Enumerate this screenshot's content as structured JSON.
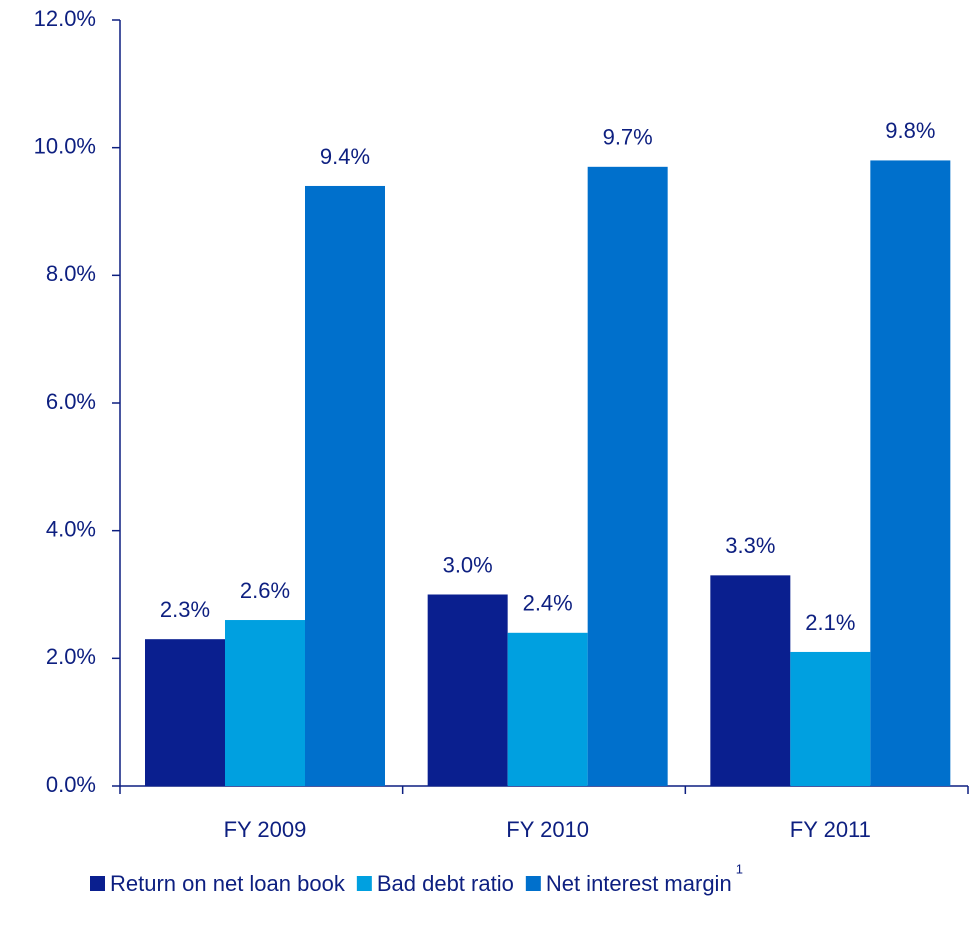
{
  "chart_data": {
    "type": "bar",
    "categories": [
      "FY 2009",
      "FY 2010",
      "FY 2011"
    ],
    "series": [
      {
        "name": "Return on net loan book",
        "color": "#0a1f8f",
        "values": [
          2.3,
          3.0,
          3.3
        ],
        "value_labels": [
          "2.3%",
          "3.0%",
          "3.3%"
        ]
      },
      {
        "name": "Bad debt ratio",
        "color": "#00a0e0",
        "values": [
          2.6,
          2.4,
          2.1
        ],
        "value_labels": [
          "2.6%",
          "2.4%",
          "2.1%"
        ]
      },
      {
        "name": "Net interest margin",
        "superscript": "1",
        "color": "#0070cc",
        "values": [
          9.4,
          9.7,
          9.8
        ],
        "value_labels": [
          "9.4%",
          "9.7%",
          "9.8%"
        ]
      }
    ],
    "ylim": [
      0,
      12
    ],
    "yticks": [
      {
        "value": 0,
        "label": "0.0%"
      },
      {
        "value": 2,
        "label": "2.0%"
      },
      {
        "value": 4,
        "label": "4.0%"
      },
      {
        "value": 6,
        "label": "6.0%"
      },
      {
        "value": 8,
        "label": "8.0%"
      },
      {
        "value": 10,
        "label": "10.0%"
      },
      {
        "value": 12,
        "label": "12.0%"
      }
    ],
    "grid": false,
    "legend": "bottom"
  }
}
